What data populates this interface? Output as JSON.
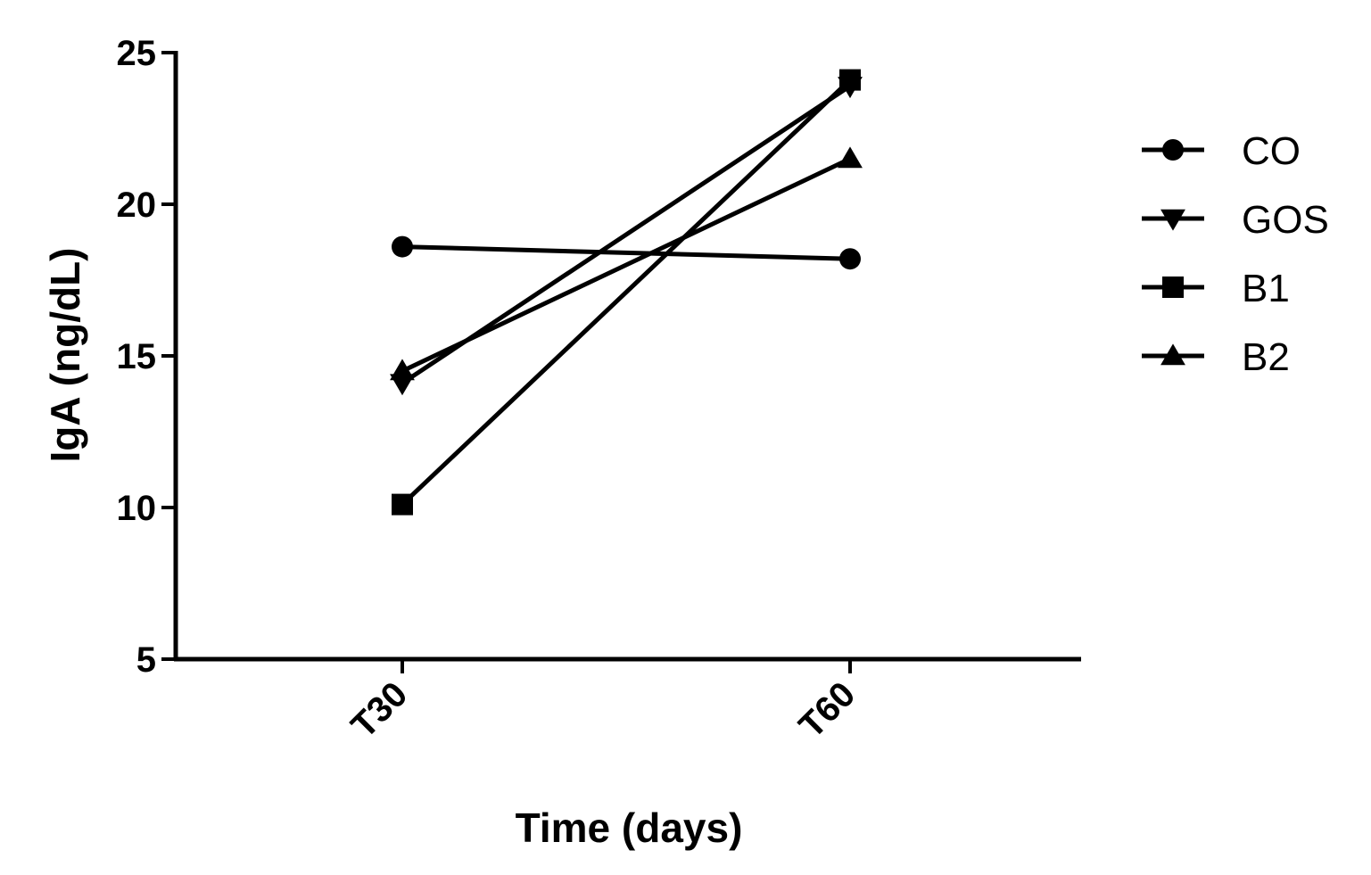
{
  "chart_data": {
    "type": "line",
    "title": "",
    "xlabel": "Time (days)",
    "ylabel": "IgA (ng/dL)",
    "categories": [
      "T30",
      "T60"
    ],
    "ylim": [
      5,
      25
    ],
    "yticks": [
      "5",
      "10",
      "15",
      "20",
      "25"
    ],
    "grid": false,
    "legend_position": "right",
    "series": [
      {
        "name": "CO",
        "marker": "circle",
        "values": [
          18.6,
          18.2
        ]
      },
      {
        "name": "GOS",
        "marker": "triangle-down",
        "values": [
          14.1,
          23.9
        ]
      },
      {
        "name": "B1",
        "marker": "square",
        "values": [
          10.1,
          24.1
        ]
      },
      {
        "name": "B2",
        "marker": "triangle-up",
        "values": [
          14.5,
          21.5
        ]
      }
    ],
    "colors": {
      "line": "#000000",
      "marker": "#000000",
      "background": "#ffffff"
    }
  }
}
